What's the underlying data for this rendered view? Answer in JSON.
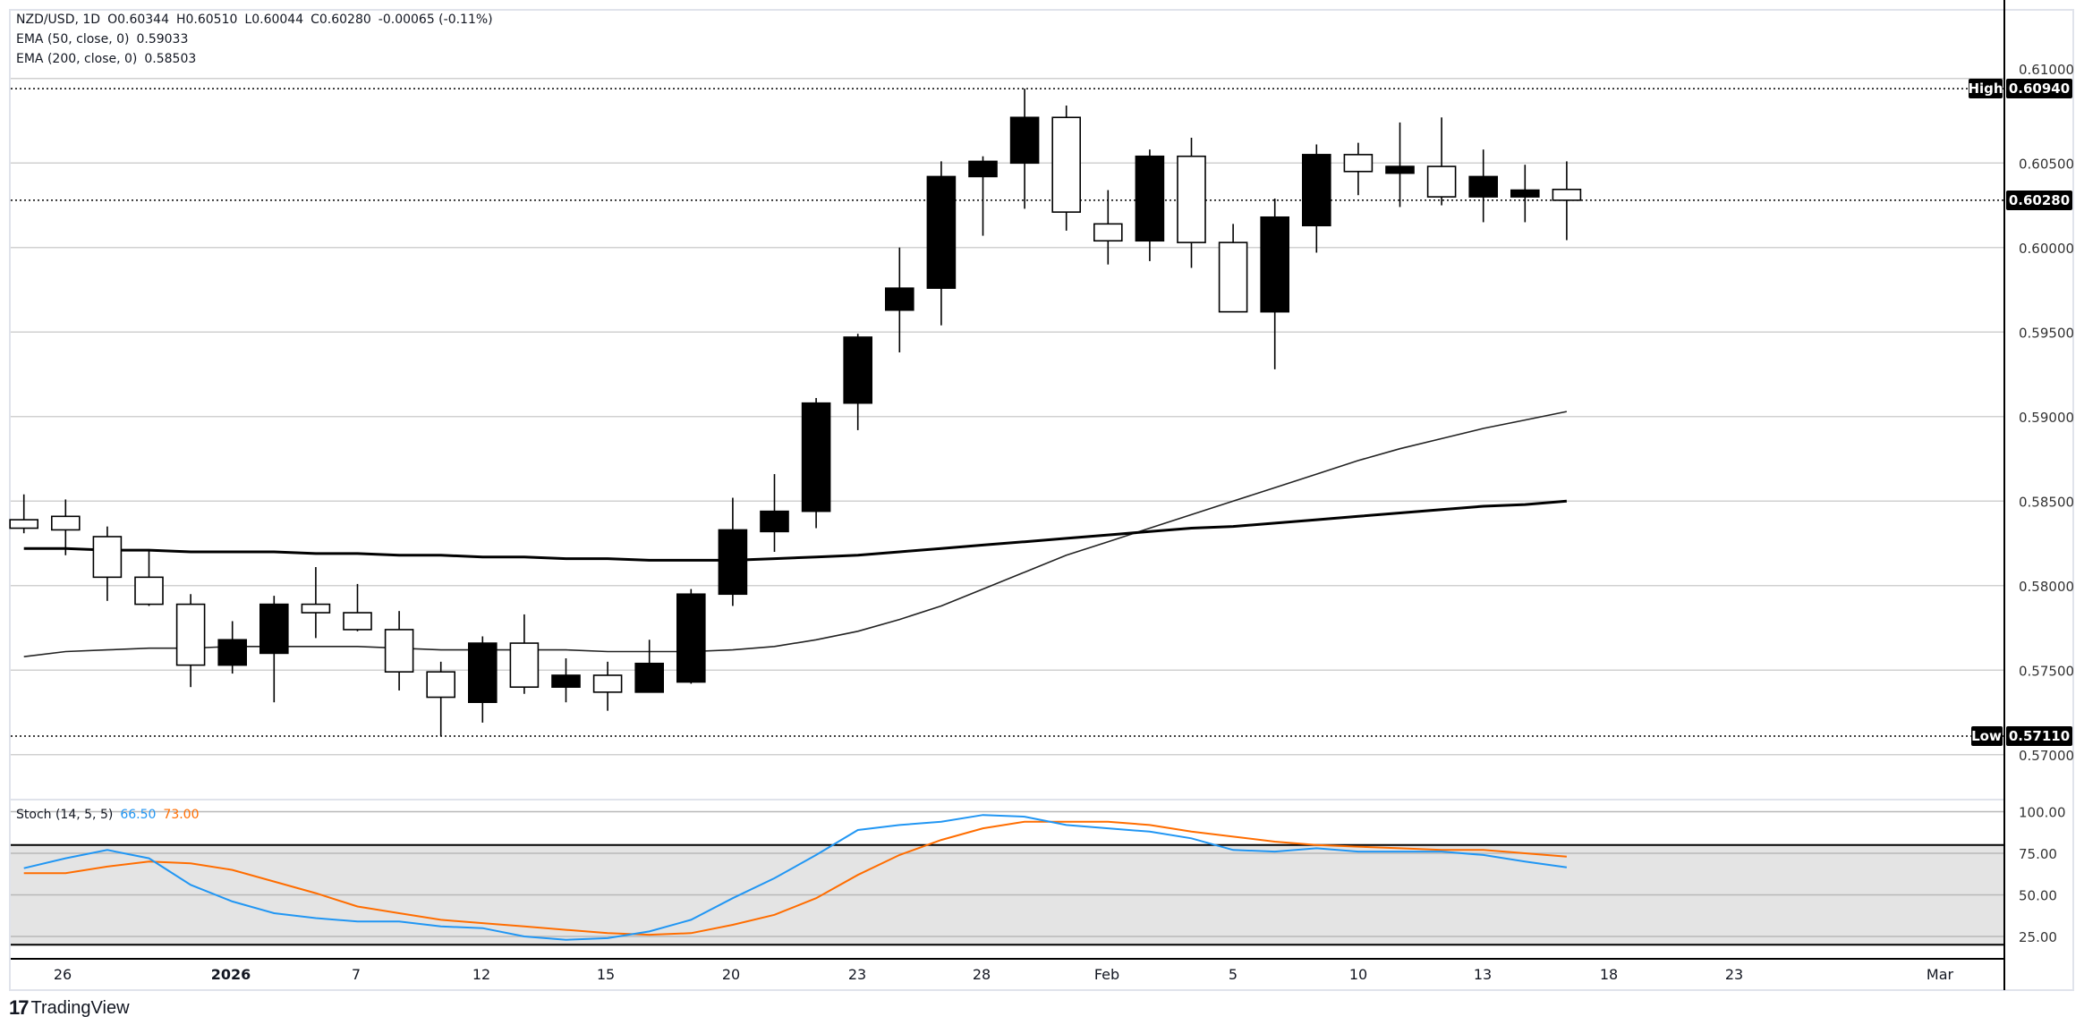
{
  "header": {
    "symbol": "NZD/USD, 1D",
    "open": "O0.60344",
    "high": "H0.60510",
    "low": "L0.60044",
    "close": "C0.60280",
    "change": "-0.00065 (-0.11%)",
    "ema50_label": "EMA (50, close, 0)",
    "ema50_value": "0.59033",
    "ema200_label": "EMA (200, close, 0)",
    "ema200_value": "0.58503"
  },
  "price_axis": {
    "ticks": [
      "0.61000",
      "0.60500",
      "0.60000",
      "0.59500",
      "0.59000",
      "0.58500",
      "0.58000",
      "0.57500",
      "0.57000"
    ],
    "tick_values": [
      0.61,
      0.605,
      0.6,
      0.595,
      0.59,
      0.585,
      0.58,
      0.575,
      0.57
    ],
    "high_tag": "High",
    "high_value": "0.60940",
    "low_tag": "Low",
    "low_value": "0.57110",
    "last_value": "0.60280"
  },
  "stoch": {
    "label": "Stoch (14, 5, 5)",
    "k_value": "66.50",
    "d_value": "73.00",
    "ticks": [
      "100.00",
      "75.00",
      "50.00",
      "25.00"
    ],
    "k_color": "#2196f3",
    "d_color": "#ff6d00"
  },
  "time_axis": {
    "labels": [
      "26",
      "2026",
      "7",
      "12",
      "15",
      "20",
      "23",
      "28",
      "Feb",
      "5",
      "10",
      "13",
      "18",
      "23",
      "Mar"
    ]
  },
  "branding": {
    "logo_text": "TradingView"
  },
  "chart_data": {
    "type": "candlestick",
    "title": "NZD/USD, 1D",
    "ylim": [
      0.5685,
      0.6125
    ],
    "ohlc": [
      [
        0.5839,
        0.5854,
        0.5831,
        0.5834
      ],
      [
        0.5841,
        0.5851,
        0.5818,
        0.5833
      ],
      [
        0.5829,
        0.5835,
        0.5791,
        0.5805
      ],
      [
        0.5805,
        0.5821,
        0.5788,
        0.5789
      ],
      [
        0.5789,
        0.5795,
        0.574,
        0.5753
      ],
      [
        0.5753,
        0.5779,
        0.5748,
        0.5768
      ],
      [
        0.576,
        0.5794,
        0.5731,
        0.5789
      ],
      [
        0.5789,
        0.5811,
        0.5769,
        0.5784
      ],
      [
        0.5784,
        0.5801,
        0.5773,
        0.5774
      ],
      [
        0.5774,
        0.5785,
        0.5738,
        0.5749
      ],
      [
        0.5749,
        0.5755,
        0.5711,
        0.5734
      ],
      [
        0.5731,
        0.577,
        0.5719,
        0.5766
      ],
      [
        0.5766,
        0.5783,
        0.5736,
        0.574
      ],
      [
        0.574,
        0.5757,
        0.5731,
        0.5747
      ],
      [
        0.5747,
        0.5755,
        0.5726,
        0.5737
      ],
      [
        0.5737,
        0.5768,
        0.5737,
        0.5754
      ],
      [
        0.5743,
        0.5798,
        0.5742,
        0.5795
      ],
      [
        0.5795,
        0.5852,
        0.5788,
        0.5833
      ],
      [
        0.5832,
        0.5866,
        0.582,
        0.5844
      ],
      [
        0.5844,
        0.5911,
        0.5834,
        0.5908
      ],
      [
        0.5908,
        0.5949,
        0.5892,
        0.5947
      ],
      [
        0.5963,
        0.6,
        0.5938,
        0.5976
      ],
      [
        0.5976,
        0.6051,
        0.5954,
        0.6042
      ],
      [
        0.6042,
        0.6054,
        0.6007,
        0.6051
      ],
      [
        0.605,
        0.6094,
        0.6023,
        0.6077
      ],
      [
        0.6077,
        0.6084,
        0.601,
        0.6021
      ],
      [
        0.6014,
        0.6034,
        0.599,
        0.6004
      ],
      [
        0.6004,
        0.6058,
        0.5992,
        0.6054
      ],
      [
        0.6054,
        0.6065,
        0.5988,
        0.6003
      ],
      [
        0.6003,
        0.6014,
        0.5962,
        0.5962
      ],
      [
        0.5962,
        0.6029,
        0.5928,
        0.6018
      ],
      [
        0.6013,
        0.6061,
        0.5997,
        0.6055
      ],
      [
        0.6055,
        0.6062,
        0.6031,
        0.6045
      ],
      [
        0.6044,
        0.6074,
        0.6024,
        0.6048
      ],
      [
        0.6048,
        0.6077,
        0.6025,
        0.603
      ],
      [
        0.603,
        0.6058,
        0.6015,
        0.6042
      ],
      [
        0.603,
        0.6049,
        0.6015,
        0.6034
      ],
      [
        0.60344,
        0.6051,
        0.60044,
        0.6028
      ]
    ],
    "ema50": [
      0.5758,
      0.5761,
      0.5762,
      0.5763,
      0.5763,
      0.5764,
      0.5764,
      0.5764,
      0.5764,
      0.5763,
      0.5762,
      0.5762,
      0.5762,
      0.5762,
      0.5761,
      0.5761,
      0.5761,
      0.5762,
      0.5764,
      0.5768,
      0.5773,
      0.578,
      0.5788,
      0.5798,
      0.5808,
      0.5818,
      0.5826,
      0.5834,
      0.5842,
      0.585,
      0.5858,
      0.5866,
      0.5874,
      0.5881,
      0.5887,
      0.5893,
      0.5898,
      0.5903
    ],
    "ema200": [
      0.5822,
      0.5822,
      0.5821,
      0.5821,
      0.582,
      0.582,
      0.582,
      0.5819,
      0.5819,
      0.5818,
      0.5818,
      0.5817,
      0.5817,
      0.5816,
      0.5816,
      0.5815,
      0.5815,
      0.5815,
      0.5816,
      0.5817,
      0.5818,
      0.582,
      0.5822,
      0.5824,
      0.5826,
      0.5828,
      0.583,
      0.5832,
      0.5834,
      0.5835,
      0.5837,
      0.5839,
      0.5841,
      0.5843,
      0.5845,
      0.5847,
      0.5848,
      0.585
    ],
    "stoch_k": [
      66,
      72,
      77,
      72,
      56,
      46,
      39,
      36,
      34,
      34,
      31,
      30,
      25,
      23,
      24,
      28,
      35,
      48,
      60,
      74,
      89,
      92,
      94,
      98,
      97,
      92,
      90,
      88,
      84,
      77,
      76,
      78,
      76,
      76,
      76,
      74,
      70,
      66.5
    ],
    "stoch_d": [
      63,
      63,
      67,
      70,
      69,
      65,
      58,
      51,
      43,
      39,
      35,
      33,
      31,
      29,
      27,
      26,
      27,
      32,
      38,
      48,
      62,
      74,
      83,
      90,
      94,
      94,
      94,
      92,
      88,
      85,
      82,
      80,
      79,
      78,
      77,
      77,
      75,
      73
    ],
    "stoch_levels": {
      "upper": 80,
      "lower": 20
    },
    "high": 0.6094,
    "low": 0.5711,
    "last": 0.6028
  }
}
